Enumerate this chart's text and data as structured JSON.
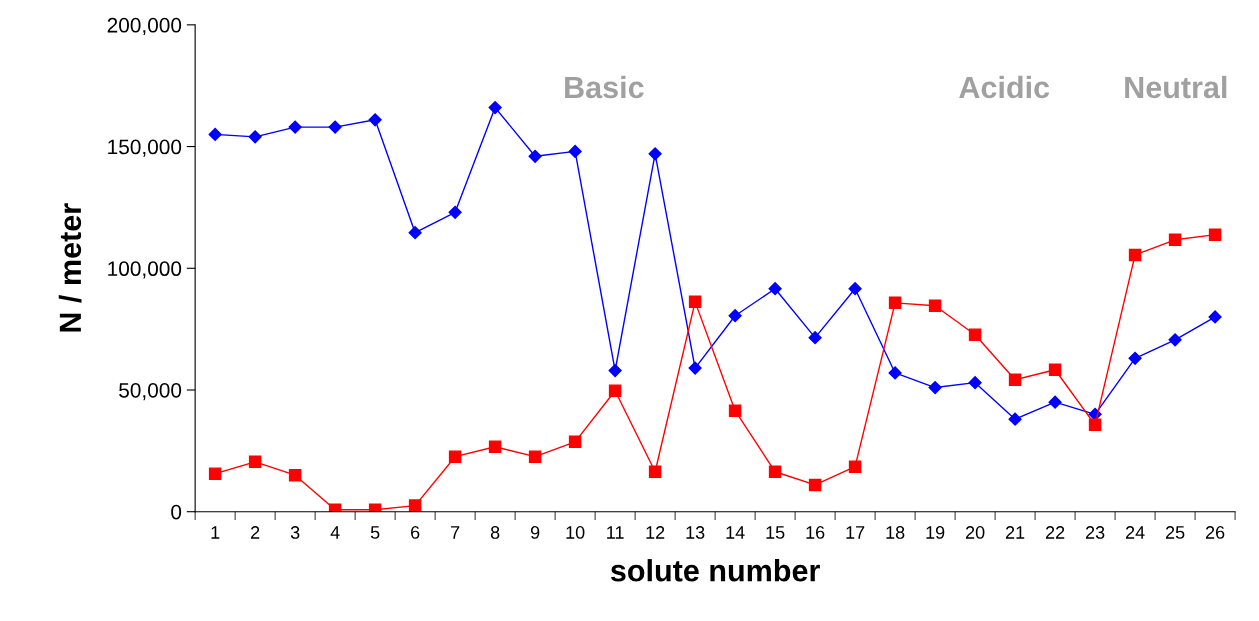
{
  "chart_data": {
    "type": "line",
    "xlabel": "solute number",
    "ylabel": "N / meter",
    "categories": [
      "1",
      "2",
      "3",
      "4",
      "5",
      "6",
      "7",
      "8",
      "9",
      "10",
      "11",
      "12",
      "13",
      "14",
      "15",
      "16",
      "17",
      "18",
      "19",
      "20",
      "21",
      "22",
      "23",
      "24",
      "25",
      "26"
    ],
    "series": [
      {
        "color": "#0000ff",
        "marker": "diamond",
        "values": [
          155000,
          154000,
          158000,
          158000,
          161000,
          114600,
          123000,
          166000,
          146000,
          148000,
          58000,
          147000,
          59000,
          80500,
          91600,
          71500,
          91600,
          57000,
          51000,
          53000,
          38000,
          45000,
          40000,
          63000,
          70600,
          80000
        ]
      },
      {
        "color": "#ff0000",
        "marker": "square",
        "values": [
          15600,
          20500,
          15000,
          800,
          800,
          2500,
          22600,
          26700,
          22600,
          28700,
          49700,
          16400,
          86200,
          41500,
          16400,
          11000,
          18500,
          85800,
          84600,
          72700,
          54200,
          58300,
          35700,
          105500,
          111700,
          113800
        ]
      }
    ],
    "ylim": [
      0,
      200000
    ],
    "yticks": [
      {
        "value": 0,
        "label": "0"
      },
      {
        "value": 50000,
        "label": "50,000"
      },
      {
        "value": 100000,
        "label": "100,000"
      },
      {
        "value": 150000,
        "label": "150,000"
      },
      {
        "value": 200000,
        "label": "200,000"
      }
    ],
    "annotations": [
      "Basic",
      "Acidic",
      "Neutral"
    ],
    "grid": false,
    "legend": false,
    "line_style": "solid"
  }
}
